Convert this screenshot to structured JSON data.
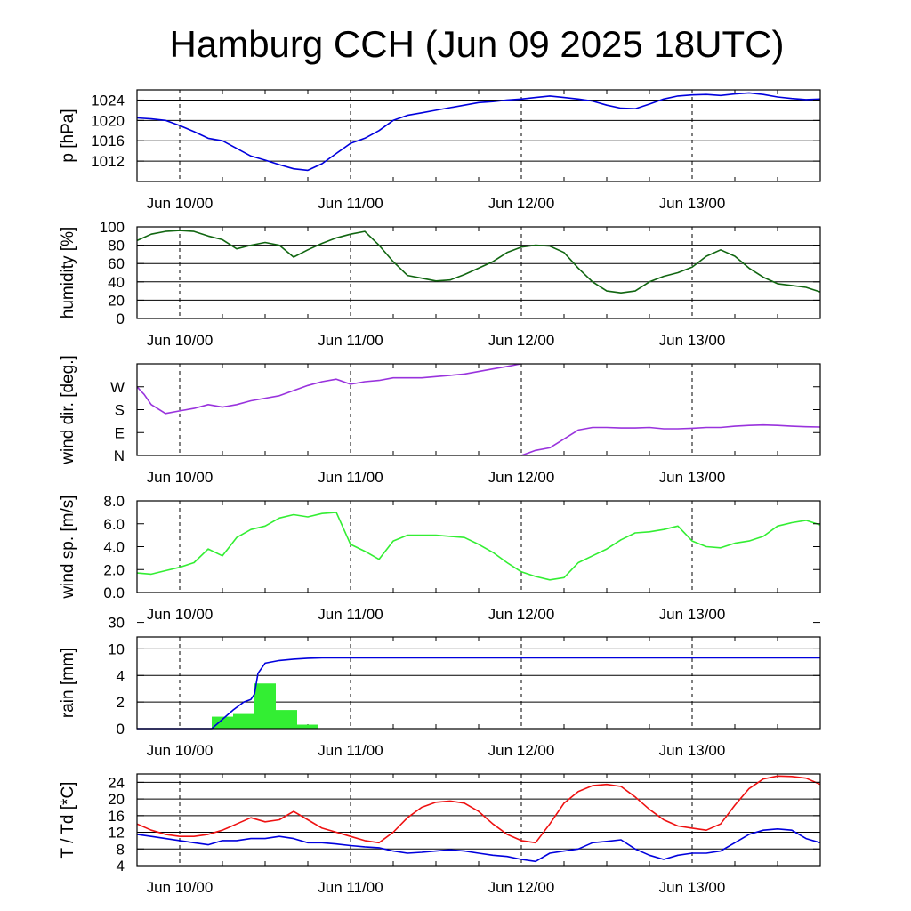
{
  "title": "Hamburg CCH (Jun 09 2025 18UTC)",
  "chart_data": [
    {
      "id": "pressure",
      "type": "line",
      "ylabel": "p [hPa]",
      "ylim": [
        1008,
        1026
      ],
      "yticks": [
        1012,
        1016,
        1020,
        1024
      ],
      "ytick_labels": [
        "1012",
        "1016",
        "1020",
        "1024"
      ],
      "x_unit": "hours since Jun 09 18UTC",
      "xlim": [
        0,
        96
      ],
      "xtick_labels": [
        "Jun 10/00",
        "Jun 11/00",
        "Jun 12/00",
        "Jun 13/00"
      ],
      "xtick_hours": [
        6,
        30,
        54,
        78
      ],
      "grid": true,
      "series": [
        {
          "color": "#0000dd",
          "x": [
            0,
            2,
            4,
            6,
            8,
            10,
            12,
            14,
            16,
            18,
            20,
            22,
            24,
            26,
            28,
            30,
            32,
            34,
            36,
            38,
            40,
            42,
            44,
            46,
            48,
            50,
            52,
            54,
            56,
            58,
            60,
            62,
            64,
            66,
            68,
            70,
            72,
            74,
            76,
            78,
            80,
            82,
            84,
            86,
            88,
            90,
            92,
            94,
            96
          ],
          "values": [
            1020.5,
            1020.3,
            1020.0,
            1019.0,
            1017.8,
            1016.5,
            1016.0,
            1014.5,
            1013.0,
            1012.2,
            1011.3,
            1010.5,
            1010.2,
            1011.5,
            1013.5,
            1015.5,
            1016.5,
            1018.0,
            1020.0,
            1021.0,
            1021.5,
            1022.0,
            1022.5,
            1023.0,
            1023.5,
            1023.7,
            1024.0,
            1024.2,
            1024.5,
            1024.8,
            1024.5,
            1024.2,
            1023.8,
            1023.0,
            1022.4,
            1022.3,
            1023.2,
            1024.2,
            1024.8,
            1025.0,
            1025.1,
            1024.9,
            1025.2,
            1025.4,
            1025.1,
            1024.6,
            1024.3,
            1024.1,
            1024.2
          ]
        }
      ]
    },
    {
      "id": "humidity",
      "type": "line",
      "ylabel": "humidity [%]",
      "ylim": [
        0,
        100
      ],
      "yticks": [
        0,
        20,
        40,
        60,
        80,
        100
      ],
      "ytick_labels": [
        "0",
        "20",
        "40",
        "60",
        "80",
        "100"
      ],
      "xlim": [
        0,
        96
      ],
      "xtick_labels": [
        "Jun 10/00",
        "Jun 11/00",
        "Jun 12/00",
        "Jun 13/00"
      ],
      "xtick_hours": [
        6,
        30,
        54,
        78
      ],
      "grid": true,
      "series": [
        {
          "color": "#116611",
          "x": [
            0,
            2,
            4,
            6,
            8,
            10,
            12,
            14,
            16,
            18,
            20,
            22,
            24,
            26,
            28,
            30,
            32,
            34,
            36,
            38,
            40,
            42,
            44,
            46,
            48,
            50,
            52,
            54,
            56,
            58,
            60,
            62,
            64,
            66,
            68,
            70,
            72,
            74,
            76,
            78,
            80,
            82,
            84,
            86,
            88,
            90,
            92,
            94,
            96
          ],
          "values": [
            85,
            92,
            95,
            96,
            95,
            90,
            86,
            76,
            80,
            83,
            80,
            67,
            75,
            82,
            88,
            92,
            95,
            80,
            62,
            47,
            44,
            41,
            42,
            48,
            55,
            62,
            72,
            78,
            80,
            79,
            72,
            55,
            40,
            30,
            28,
            30,
            40,
            46,
            50,
            56,
            68,
            75,
            68,
            55,
            45,
            38,
            36,
            34,
            29
          ]
        }
      ]
    },
    {
      "id": "wind-direction",
      "type": "line",
      "ylabel": "wind dir. [deg.]",
      "ylim": [
        0,
        360
      ],
      "yticks": [
        0,
        90,
        180,
        270
      ],
      "ytick_labels": [
        "N",
        "E",
        "S",
        "W"
      ],
      "xlim": [
        0,
        96
      ],
      "xtick_labels": [
        "Jun 10/00",
        "Jun 11/00",
        "Jun 12/00",
        "Jun 13/00"
      ],
      "xtick_hours": [
        6,
        30,
        54,
        78
      ],
      "grid": false,
      "series": [
        {
          "color": "#9933dd",
          "x": [
            0,
            1,
            2,
            4,
            6,
            8,
            10,
            12,
            14,
            16,
            18,
            20,
            22,
            24,
            26,
            28,
            30,
            32,
            34,
            36,
            38,
            40,
            42,
            44,
            46,
            48,
            50,
            52,
            53.9
          ],
          "values": [
            270,
            240,
            200,
            165,
            175,
            185,
            200,
            190,
            200,
            215,
            225,
            235,
            255,
            275,
            290,
            300,
            280,
            290,
            295,
            305,
            305,
            305,
            310,
            315,
            320,
            330,
            340,
            350,
            360
          ]
        },
        {
          "color": "#9933dd",
          "x": [
            54,
            56,
            58,
            60,
            62,
            64,
            66,
            68,
            70,
            72,
            74,
            76,
            78,
            80,
            82,
            84,
            86,
            88,
            90,
            92,
            94,
            96
          ],
          "values": [
            0,
            20,
            30,
            65,
            100,
            110,
            110,
            108,
            108,
            110,
            105,
            105,
            107,
            110,
            110,
            115,
            118,
            120,
            118,
            115,
            113,
            112
          ]
        }
      ]
    },
    {
      "id": "wind-speed",
      "type": "line",
      "ylabel": "wind sp. [m/s]",
      "ylim": [
        0,
        8
      ],
      "yticks": [
        0,
        2,
        4,
        6,
        8
      ],
      "ytick_labels": [
        "0.0",
        "2.0",
        "4.0",
        "6.0",
        "8.0"
      ],
      "xlim": [
        0,
        96
      ],
      "xtick_labels": [
        "Jun 10/00",
        "Jun 11/00",
        "Jun 12/00",
        "Jun 13/00"
      ],
      "xtick_hours": [
        6,
        30,
        54,
        78
      ],
      "grid": false,
      "series": [
        {
          "color": "#33ee33",
          "x": [
            0,
            2,
            4,
            6,
            8,
            10,
            12,
            14,
            16,
            18,
            20,
            22,
            24,
            26,
            28,
            30,
            32,
            34,
            36,
            38,
            40,
            42,
            44,
            46,
            48,
            50,
            52,
            54,
            56,
            58,
            60,
            62,
            64,
            66,
            68,
            70,
            72,
            74,
            76,
            78,
            80,
            82,
            84,
            86,
            88,
            90,
            92,
            94,
            96
          ],
          "values": [
            1.7,
            1.6,
            1.9,
            2.2,
            2.6,
            3.8,
            3.2,
            4.8,
            5.5,
            5.8,
            6.5,
            6.8,
            6.6,
            6.9,
            7.0,
            4.2,
            3.6,
            2.9,
            4.5,
            5.0,
            5.0,
            5.0,
            4.9,
            4.8,
            4.2,
            3.5,
            2.6,
            1.8,
            1.4,
            1.1,
            1.3,
            2.6,
            3.2,
            3.8,
            4.6,
            5.2,
            5.3,
            5.5,
            5.8,
            4.5,
            4.0,
            3.9,
            4.3,
            4.5,
            4.9,
            5.8,
            6.1,
            6.3,
            5.9
          ]
        }
      ]
    },
    {
      "id": "rain",
      "type": "bar",
      "ylabel": "rain [mm]",
      "ytick_labels": [
        "0",
        "2",
        "4",
        "10",
        "30"
      ],
      "ytick_values": [
        0,
        2,
        4,
        10,
        30
      ],
      "xlim": [
        0,
        96
      ],
      "xtick_labels": [
        "Jun 10/00",
        "Jun 11/00",
        "Jun 12/00",
        "Jun 13/00"
      ],
      "xtick_hours": [
        6,
        30,
        54,
        78
      ],
      "grid": true,
      "bar_color": "#33ee33",
      "bars": [
        {
          "x_start": 10.5,
          "x_end": 13.5,
          "value": 0.9
        },
        {
          "x_start": 13.5,
          "x_end": 16.5,
          "value": 1.1
        },
        {
          "x_start": 16.5,
          "x_end": 19.5,
          "value": 3.4
        },
        {
          "x_start": 19.5,
          "x_end": 22.5,
          "value": 1.4
        },
        {
          "x_start": 22.5,
          "x_end": 25.5,
          "value": 0.3
        }
      ],
      "series": [
        {
          "name": "accumulated",
          "color": "#0000dd",
          "x": [
            0,
            10.5,
            12,
            13.5,
            15,
            16,
            16.5,
            17,
            18,
            20,
            22,
            24,
            26,
            30,
            40,
            60,
            80,
            96
          ],
          "values": [
            0,
            0,
            0.7,
            1.4,
            2.0,
            2.2,
            2.6,
            4.5,
            6.8,
            7.4,
            7.7,
            7.9,
            8.0,
            8.0,
            8.0,
            8.0,
            8.0,
            8.0
          ]
        }
      ]
    },
    {
      "id": "temperature",
      "type": "line",
      "ylabel": "T / Td [*C]",
      "ylim": [
        4,
        26
      ],
      "yticks": [
        4,
        8,
        12,
        16,
        20,
        24
      ],
      "ytick_labels": [
        "4",
        "8",
        "12",
        "16",
        "20",
        "24"
      ],
      "xlim": [
        0,
        96
      ],
      "xtick_labels": [
        "Jun 10/00",
        "Jun 11/00",
        "Jun 12/00",
        "Jun 13/00"
      ],
      "xtick_hours": [
        6,
        30,
        54,
        78
      ],
      "grid": true,
      "series": [
        {
          "color": "#ee1111",
          "x": [
            0,
            2,
            4,
            6,
            8,
            10,
            12,
            14,
            16,
            18,
            20,
            22,
            24,
            26,
            28,
            30,
            32,
            34,
            36,
            38,
            40,
            42,
            44,
            46,
            48,
            50,
            52,
            54,
            56,
            58,
            60,
            62,
            64,
            66,
            68,
            70,
            72,
            74,
            76,
            78,
            80,
            82,
            84,
            86,
            88,
            90,
            92,
            94,
            96
          ],
          "values": [
            14.0,
            12.5,
            11.5,
            11.0,
            11.0,
            11.5,
            12.5,
            14.0,
            15.5,
            14.5,
            15.0,
            17.0,
            15.0,
            13.0,
            12.0,
            11.0,
            10.0,
            9.5,
            12.0,
            15.5,
            18.0,
            19.2,
            19.5,
            19.0,
            17.0,
            14.0,
            11.5,
            10.0,
            9.5,
            14.0,
            19.0,
            21.8,
            23.2,
            23.5,
            23.0,
            20.5,
            17.5,
            15.0,
            13.5,
            13.0,
            12.5,
            14.0,
            18.5,
            22.5,
            24.8,
            25.5,
            25.4,
            25.0,
            23.5
          ]
        },
        {
          "color": "#0000dd",
          "x": [
            0,
            2,
            4,
            6,
            8,
            10,
            12,
            14,
            16,
            18,
            20,
            22,
            24,
            26,
            28,
            30,
            32,
            34,
            36,
            38,
            40,
            42,
            44,
            46,
            48,
            50,
            52,
            54,
            56,
            58,
            60,
            62,
            64,
            66,
            68,
            70,
            72,
            74,
            76,
            78,
            80,
            82,
            84,
            86,
            88,
            90,
            92,
            94,
            96
          ],
          "values": [
            11.5,
            11.0,
            10.5,
            10.0,
            9.5,
            9.0,
            10.0,
            10.0,
            10.5,
            10.5,
            11.0,
            10.5,
            9.5,
            9.5,
            9.2,
            8.8,
            8.5,
            8.3,
            7.5,
            7.0,
            7.2,
            7.5,
            7.8,
            7.5,
            7.0,
            6.5,
            6.2,
            5.5,
            5.0,
            7.0,
            7.5,
            8.0,
            9.5,
            9.8,
            10.2,
            8.0,
            6.5,
            5.5,
            6.5,
            7.0,
            7.0,
            7.5,
            9.5,
            11.5,
            12.5,
            12.8,
            12.5,
            10.5,
            9.5
          ]
        }
      ]
    }
  ]
}
